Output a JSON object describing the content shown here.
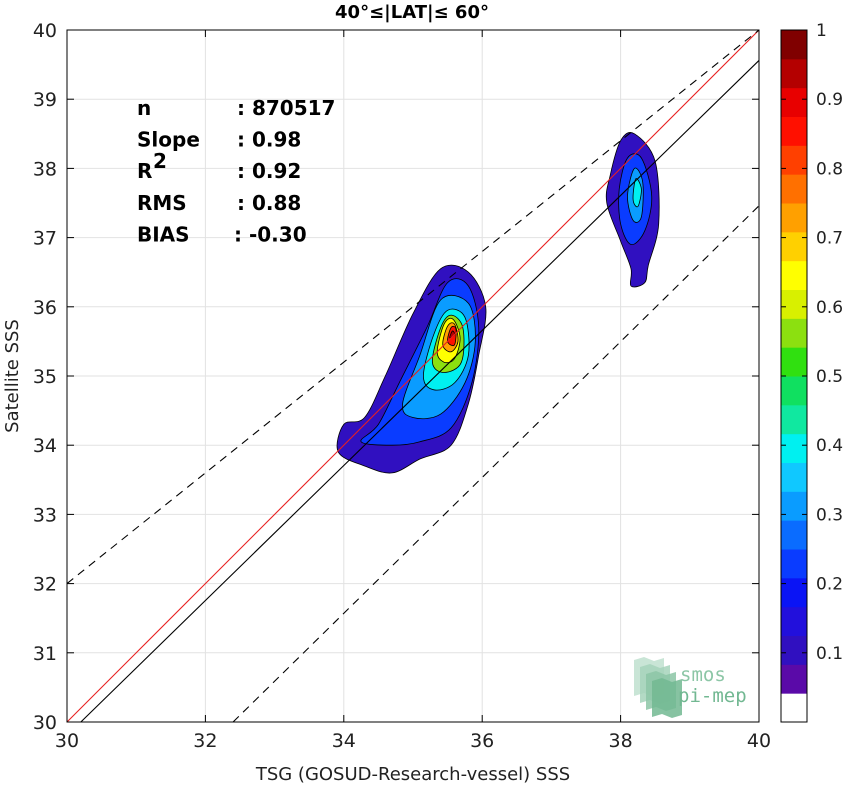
{
  "chart_data": {
    "type": "contour-scatter",
    "title": "40°≤|LAT|≤ 60°",
    "xlabel": "TSG (GOSUD-Research-vessel) SSS",
    "ylabel": "Satellite SSS",
    "xlim": [
      30,
      40
    ],
    "ylim": [
      30,
      40
    ],
    "xticks": [
      "30",
      "32",
      "34",
      "36",
      "38",
      "40"
    ],
    "yticks": [
      "30",
      "31",
      "32",
      "33",
      "34",
      "35",
      "36",
      "37",
      "38",
      "39",
      "40"
    ],
    "grid": true,
    "stats": [
      {
        "label": "n",
        "value": ": 870517"
      },
      {
        "label": "Slope",
        "value": ": 0.98"
      },
      {
        "label": "R",
        "sup": "2",
        "value": ": 0.92"
      },
      {
        "label": "RMS",
        "value": ": 0.88"
      },
      {
        "label": "BIAS",
        "value": ": -0.30"
      }
    ],
    "lines": [
      {
        "name": "1:1",
        "color": "#e82020",
        "style": "solid",
        "points": [
          [
            30,
            30
          ],
          [
            40,
            40
          ]
        ]
      },
      {
        "name": "bias",
        "color": "#000000",
        "style": "solid",
        "points": [
          [
            30.2,
            30
          ],
          [
            40,
            39.56
          ]
        ]
      },
      {
        "name": "upper",
        "color": "#000000",
        "style": "dashed",
        "points": [
          [
            30,
            32
          ],
          [
            40,
            40
          ]
        ]
      },
      {
        "name": "lower",
        "color": "#000000",
        "style": "dashed",
        "points": [
          [
            32.4,
            30
          ],
          [
            40,
            37.46
          ]
        ]
      }
    ],
    "colorbar": {
      "ticks": [
        "0.1",
        "0.2",
        "0.3",
        "0.4",
        "0.5",
        "0.6",
        "0.7",
        "0.8",
        "0.9",
        "1"
      ],
      "colors": [
        "#ffffff",
        "#5a0aa8",
        "#3010c0",
        "#2210dc",
        "#0a14f5",
        "#0a3cff",
        "#0a6cff",
        "#0a9cff",
        "#10c8ff",
        "#00f0f0",
        "#10e8a0",
        "#10e060",
        "#30e010",
        "#8ce010",
        "#d8f000",
        "#ffff00",
        "#ffd000",
        "#ffa000",
        "#ff7000",
        "#ff4000",
        "#ff1000",
        "#e80000",
        "#b40000",
        "#800000"
      ]
    },
    "clusters": [
      {
        "name": "main",
        "center": [
          35.55,
          35.6
        ],
        "levels": [
          {
            "level": 0.1,
            "pts": [
              [
                34.0,
                34.3
              ],
              [
                34.3,
                34.4
              ],
              [
                34.6,
                35.0
              ],
              [
                35.0,
                35.9
              ],
              [
                35.4,
                36.55
              ],
              [
                35.8,
                36.5
              ],
              [
                36.05,
                36.0
              ],
              [
                35.95,
                35.3
              ],
              [
                35.8,
                34.6
              ],
              [
                35.55,
                34.0
              ],
              [
                35.1,
                33.8
              ],
              [
                34.7,
                33.6
              ],
              [
                34.3,
                33.7
              ],
              [
                33.92,
                33.9
              ]
            ]
          },
          {
            "level": 0.2,
            "pts": [
              [
                34.25,
                34.05
              ],
              [
                34.5,
                34.3
              ],
              [
                34.8,
                34.9
              ],
              [
                35.2,
                35.7
              ],
              [
                35.5,
                36.35
              ],
              [
                35.8,
                36.3
              ],
              [
                35.95,
                35.7
              ],
              [
                35.85,
                34.9
              ],
              [
                35.55,
                34.25
              ],
              [
                35.1,
                34.05
              ],
              [
                34.7,
                34.0
              ]
            ]
          },
          {
            "level": 0.3,
            "pts": [
              [
                34.85,
                34.6
              ],
              [
                35.1,
                35.3
              ],
              [
                35.4,
                36.1
              ],
              [
                35.8,
                36.05
              ],
              [
                35.9,
                35.5
              ],
              [
                35.75,
                34.9
              ],
              [
                35.4,
                34.45
              ],
              [
                35.0,
                34.4
              ]
            ]
          },
          {
            "level": 0.4,
            "pts": [
              [
                35.15,
                35.0
              ],
              [
                35.3,
                35.6
              ],
              [
                35.5,
                35.95
              ],
              [
                35.75,
                35.85
              ],
              [
                35.8,
                35.3
              ],
              [
                35.6,
                34.9
              ],
              [
                35.3,
                34.8
              ]
            ]
          },
          {
            "level": 0.55,
            "pts": [
              [
                35.28,
                35.2
              ],
              [
                35.4,
                35.7
              ],
              [
                35.55,
                35.88
              ],
              [
                35.72,
                35.7
              ],
              [
                35.7,
                35.2
              ],
              [
                35.45,
                35.05
              ]
            ]
          },
          {
            "level": 0.65,
            "pts": [
              [
                35.35,
                35.35
              ],
              [
                35.45,
                35.75
              ],
              [
                35.58,
                35.82
              ],
              [
                35.68,
                35.55
              ],
              [
                35.6,
                35.25
              ],
              [
                35.45,
                35.2
              ]
            ]
          },
          {
            "level": 0.75,
            "pts": [
              [
                35.43,
                35.45
              ],
              [
                35.5,
                35.72
              ],
              [
                35.6,
                35.75
              ],
              [
                35.65,
                35.5
              ],
              [
                35.55,
                35.35
              ]
            ]
          },
          {
            "level": 0.85,
            "pts": [
              [
                35.5,
                35.5
              ],
              [
                35.55,
                35.7
              ],
              [
                35.62,
                35.68
              ],
              [
                35.6,
                35.45
              ]
            ]
          },
          {
            "level": 0.95,
            "pts": [
              [
                35.53,
                35.55
              ],
              [
                35.57,
                35.65
              ],
              [
                35.6,
                35.6
              ]
            ]
          }
        ]
      },
      {
        "name": "secondary",
        "center": [
          38.2,
          37.7
        ],
        "levels": [
          {
            "level": 0.1,
            "pts": [
              [
                37.85,
                37.9
              ],
              [
                38.0,
                38.4
              ],
              [
                38.2,
                38.5
              ],
              [
                38.5,
                38.1
              ],
              [
                38.55,
                37.2
              ],
              [
                38.4,
                36.6
              ],
              [
                38.35,
                36.35
              ],
              [
                38.15,
                36.3
              ],
              [
                38.15,
                36.55
              ],
              [
                38.0,
                36.95
              ],
              [
                37.8,
                37.5
              ]
            ]
          },
          {
            "level": 0.2,
            "pts": [
              [
                37.98,
                37.7
              ],
              [
                38.1,
                38.15
              ],
              [
                38.3,
                38.15
              ],
              [
                38.45,
                37.6
              ],
              [
                38.35,
                37.1
              ],
              [
                38.15,
                36.9
              ],
              [
                38.0,
                37.2
              ]
            ]
          },
          {
            "level": 0.3,
            "pts": [
              [
                38.1,
                37.6
              ],
              [
                38.2,
                38.0
              ],
              [
                38.32,
                37.8
              ],
              [
                38.3,
                37.3
              ],
              [
                38.18,
                37.25
              ]
            ]
          },
          {
            "level": 0.4,
            "pts": [
              [
                38.18,
                37.55
              ],
              [
                38.22,
                37.85
              ],
              [
                38.3,
                37.7
              ],
              [
                38.25,
                37.45
              ]
            ]
          }
        ]
      }
    ],
    "logo": {
      "line1": "smos",
      "line2": "pi-mep"
    }
  }
}
